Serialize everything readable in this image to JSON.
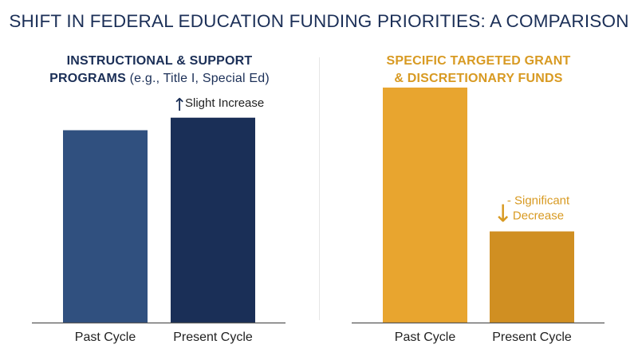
{
  "title": "SHIFT IN FEDERAL EDUCATION FUNDING PRIORITIES: A COMPARISON",
  "colors": {
    "navy": "#1b2f57",
    "gold": "#d89a22",
    "axis": "#555555"
  },
  "chart_data": [
    {
      "type": "bar",
      "title_bold_line1": "INSTRUCTIONAL & SUPPORT",
      "title_bold_line2": "PROGRAMS",
      "title_normal": "(e.g., Title I, Special Ed)",
      "categories": [
        "Past Cycle",
        "Present Cycle"
      ],
      "values": [
        230,
        245
      ],
      "colors": [
        "#30507f",
        "#1a2f57"
      ],
      "ylim": [
        0,
        300
      ],
      "annotation": {
        "text": "Slight Increase",
        "arrow": "↑",
        "target_index": 1
      }
    },
    {
      "type": "bar",
      "title_line1": "SPECIFIC TARGETED GRANT",
      "title_line2": "& DISCRETIONARY FUNDS",
      "categories": [
        "Past Cycle",
        "Present Cycle"
      ],
      "values": [
        281,
        109
      ],
      "colors": [
        "#e8a52f",
        "#d08f22"
      ],
      "ylim": [
        0,
        300
      ],
      "annotation": {
        "text_line1": "- Significant",
        "text_line2": "Decrease",
        "arrow": "↓",
        "target_index": 1
      }
    }
  ]
}
